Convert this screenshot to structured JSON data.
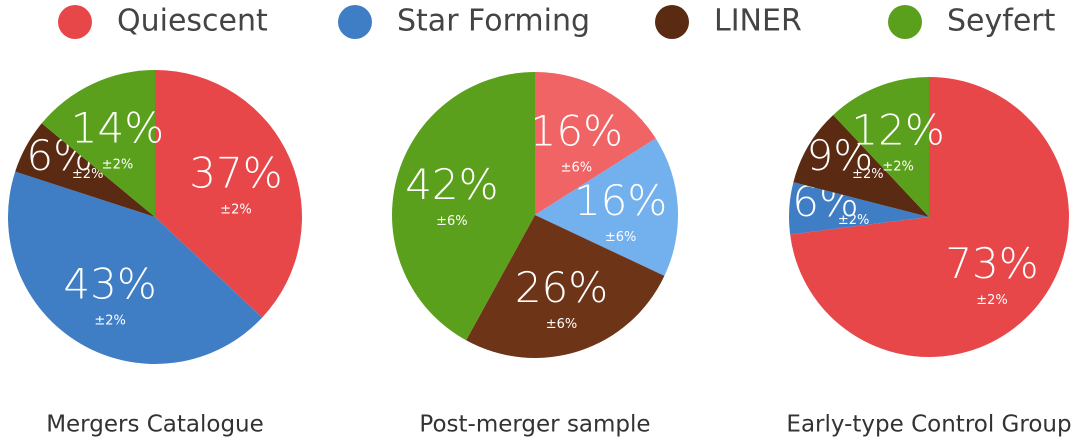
{
  "chart_data": [
    {
      "type": "pie",
      "title": "Mergers Catalogue",
      "categories": [
        "Quiescent",
        "Star Forming",
        "LINER",
        "Seyfert"
      ],
      "colors": [
        "#e8474a",
        "#3f7ec4",
        "#5a2a12",
        "#5aa01c"
      ],
      "values": [
        37,
        43,
        6,
        14
      ],
      "value_labels": [
        "37%",
        "43%",
        "6%",
        "14%"
      ],
      "errors": [
        2,
        2,
        2,
        2
      ],
      "error_labels": [
        "±2%",
        "±2%",
        "±2%",
        "±2%"
      ]
    },
    {
      "type": "pie",
      "title": "Post-merger sample",
      "categories": [
        "Quiescent",
        "Star Forming",
        "LINER",
        "Seyfert"
      ],
      "colors": [
        "#f06465",
        "#73b0ee",
        "#6e3417",
        "#5aa01c"
      ],
      "values": [
        16,
        16,
        26,
        42
      ],
      "value_labels": [
        "16%",
        "16%",
        "26%",
        "42%"
      ],
      "errors": [
        6,
        6,
        6,
        6
      ],
      "error_labels": [
        "±6%",
        "±6%",
        "±6%",
        "±6%"
      ]
    },
    {
      "type": "pie",
      "title": "Early-type Control Group",
      "categories": [
        "Quiescent",
        "Star Forming",
        "LINER",
        "Seyfert"
      ],
      "colors": [
        "#e8474a",
        "#3f7ec4",
        "#5a2a12",
        "#5aa01c"
      ],
      "values": [
        73,
        6,
        9,
        12
      ],
      "value_labels": [
        "73%",
        "6%",
        "9%",
        "12%"
      ],
      "errors": [
        2,
        2,
        2,
        2
      ],
      "error_labels": [
        "±2%",
        "±2%",
        "±2%",
        "±2%"
      ]
    }
  ]
}
